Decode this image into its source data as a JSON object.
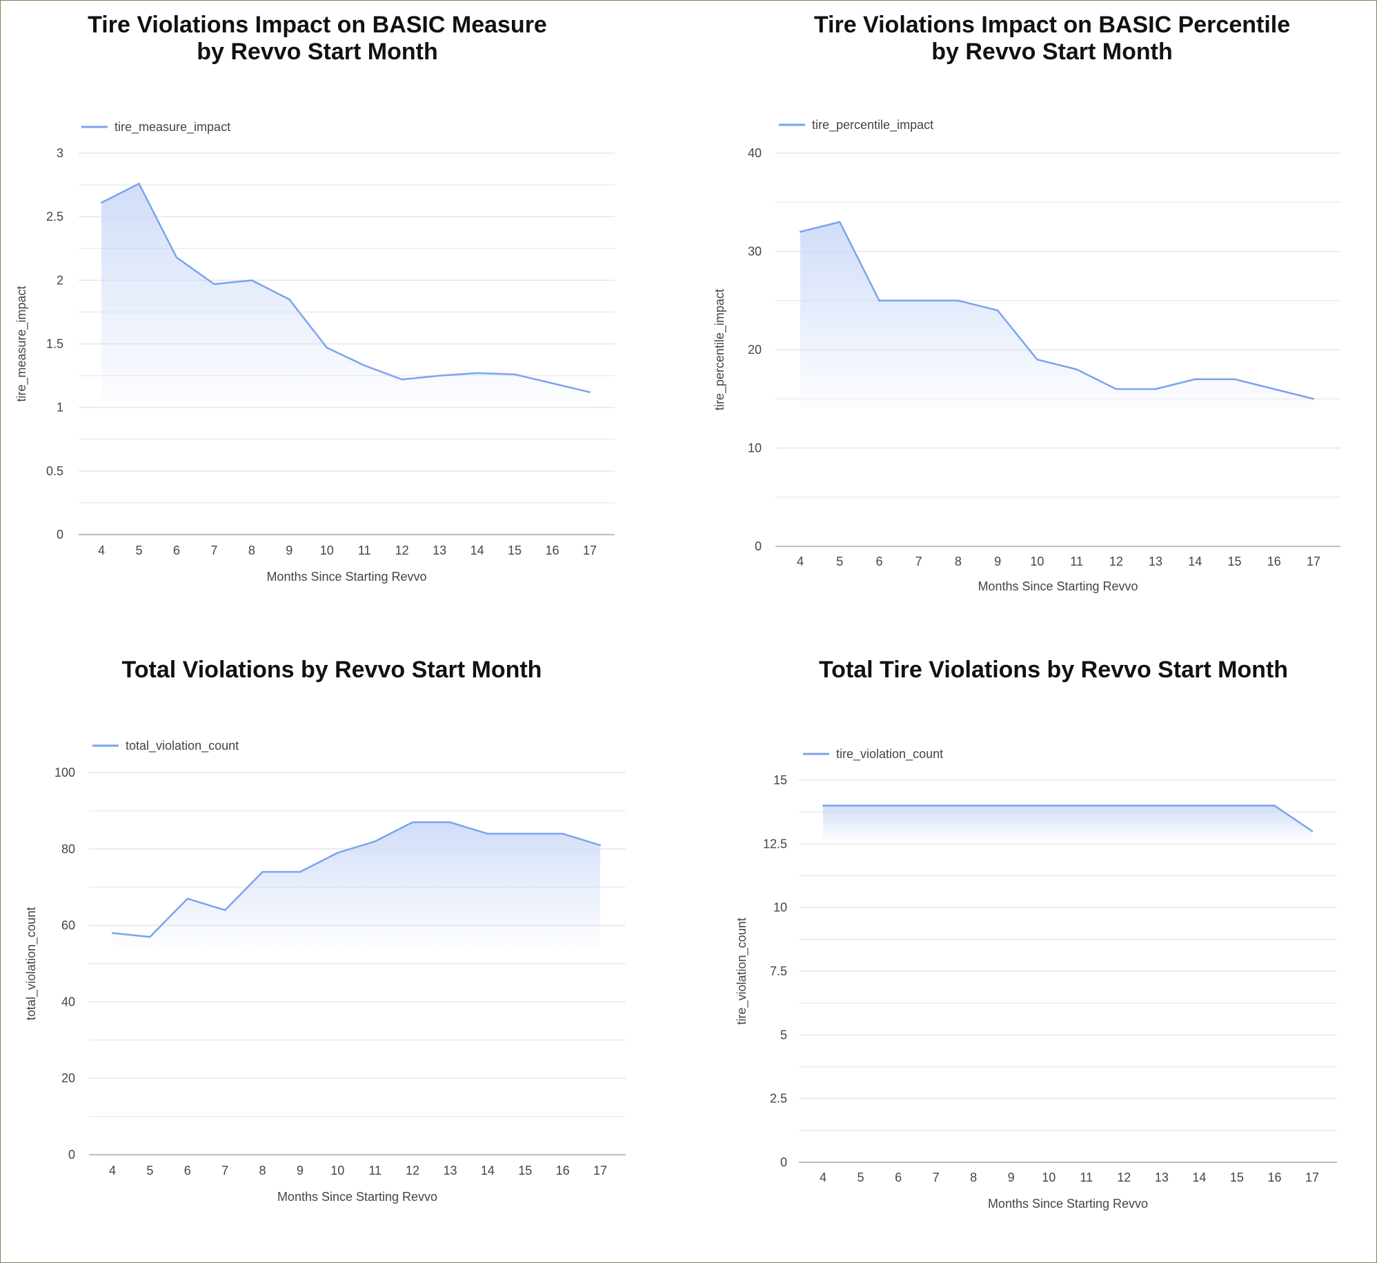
{
  "chart_data": [
    {
      "type": "area",
      "title": [
        "Tire Violations Impact on BASIC Measure",
        "by Revvo Start Month"
      ],
      "xlabel": "Months Since Starting Revvo",
      "ylabel": "tire_measure_impact",
      "legend": "top-left",
      "grid": true,
      "line_color": "#7aa3ef",
      "x": [
        4,
        5,
        6,
        7,
        8,
        9,
        10,
        11,
        12,
        13,
        14,
        15,
        16,
        17
      ],
      "series": [
        {
          "name": "tire_measure_impact",
          "values": [
            2.61,
            2.76,
            2.18,
            1.97,
            2.0,
            1.85,
            1.47,
            1.33,
            1.22,
            1.25,
            1.27,
            1.26,
            1.19,
            1.12
          ]
        }
      ],
      "ylim": [
        0,
        3
      ],
      "yticks": [
        0,
        0.5,
        1,
        1.5,
        2,
        2.5,
        3
      ],
      "ytick_labels": [
        "0",
        "0.5",
        "1",
        "1.5",
        "2",
        "2.5",
        "3"
      ]
    },
    {
      "type": "area",
      "title": [
        "Tire Violations Impact on BASIC Percentile",
        "by Revvo Start Month"
      ],
      "xlabel": "Months Since Starting Revvo",
      "ylabel": "tire_percentile_impact",
      "legend": "top-left",
      "grid": true,
      "line_color": "#7aa3ef",
      "x": [
        4,
        5,
        6,
        7,
        8,
        9,
        10,
        11,
        12,
        13,
        14,
        15,
        16,
        17
      ],
      "series": [
        {
          "name": "tire_percentile_impact",
          "values": [
            32,
            33,
            25,
            25,
            25,
            24,
            19,
            18,
            16,
            16,
            17,
            17,
            16,
            15
          ]
        }
      ],
      "ylim": [
        0,
        40
      ],
      "yticks": [
        0,
        10,
        20,
        30,
        40
      ],
      "ytick_labels": [
        "0",
        "10",
        "20",
        "30",
        "40"
      ]
    },
    {
      "type": "area",
      "title": [
        "Total Violations by Revvo Start Month"
      ],
      "xlabel": "Months Since Starting Revvo",
      "ylabel": "total_violation_count",
      "legend": "top-left",
      "grid": true,
      "line_color": "#7aa3ef",
      "x": [
        4,
        5,
        6,
        7,
        8,
        9,
        10,
        11,
        12,
        13,
        14,
        15,
        16,
        17
      ],
      "series": [
        {
          "name": "total_violation_count",
          "values": [
            58,
            57,
            67,
            64,
            74,
            74,
            79,
            82,
            87,
            87,
            84,
            84,
            84,
            81
          ]
        }
      ],
      "ylim": [
        0,
        100
      ],
      "yticks": [
        0,
        20,
        40,
        60,
        80,
        100
      ],
      "ytick_labels": [
        "0",
        "20",
        "40",
        "60",
        "80",
        "100"
      ]
    },
    {
      "type": "area",
      "title": [
        "Total Tire Violations by Revvo Start Month"
      ],
      "xlabel": "Months Since Starting Revvo",
      "ylabel": "tire_violation_count",
      "legend": "top-left",
      "grid": true,
      "line_color": "#7aa3ef",
      "x": [
        4,
        5,
        6,
        7,
        8,
        9,
        10,
        11,
        12,
        13,
        14,
        15,
        16,
        17
      ],
      "series": [
        {
          "name": "tire_violation_count",
          "values": [
            14,
            14,
            14,
            14,
            14,
            14,
            14,
            14,
            14,
            14,
            14,
            14,
            14,
            13
          ]
        }
      ],
      "ylim": [
        0,
        15
      ],
      "yticks": [
        0,
        2.5,
        5,
        7.5,
        10,
        12.5,
        15
      ],
      "ytick_labels": [
        "0",
        "2.5",
        "5",
        "7.5",
        "10",
        "12.5",
        "15"
      ]
    }
  ]
}
